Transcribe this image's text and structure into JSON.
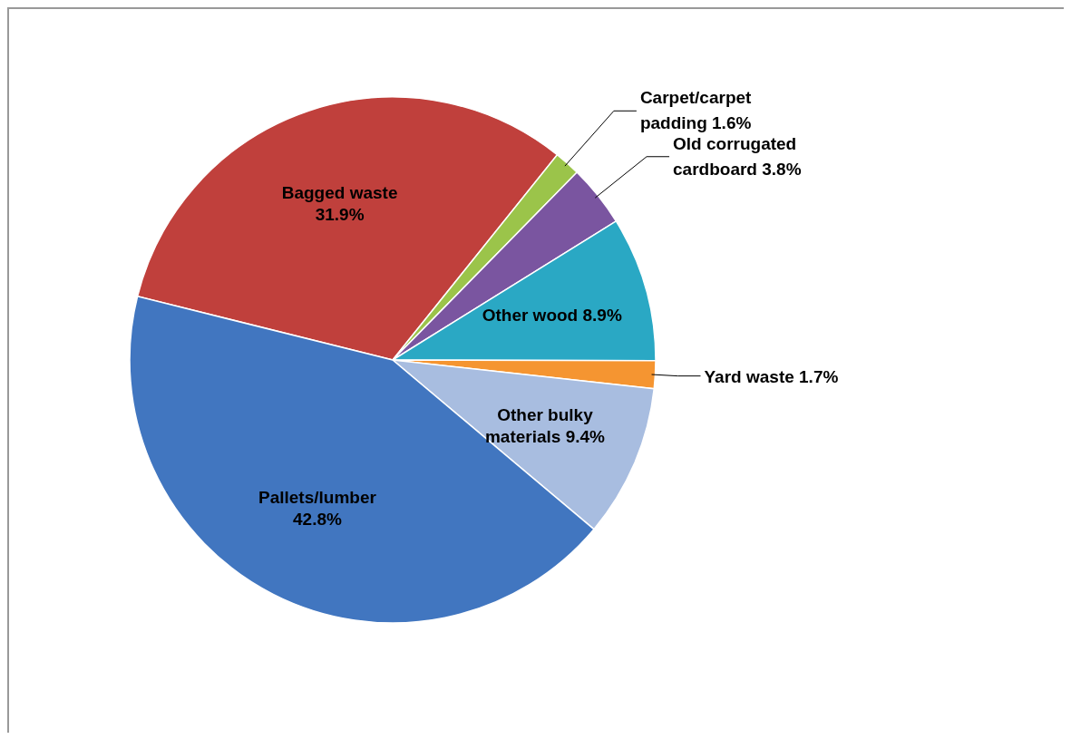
{
  "chart_data": {
    "type": "pie",
    "categories": [
      "Bagged waste",
      "Carpet/carpet padding",
      "Old corrugated cardboard",
      "Other wood",
      "Yard waste",
      "Other bulky materials",
      "Pallets/lumber"
    ],
    "values": [
      31.9,
      1.6,
      3.8,
      8.9,
      1.7,
      9.4,
      42.8
    ],
    "colors": [
      "#c0403c",
      "#9bc44a",
      "#7a55a0",
      "#2aa8c4",
      "#f59531",
      "#a8bde0",
      "#4176c0"
    ],
    "value_labels": [
      "31.9%",
      "1.6%",
      "3.8%",
      "8.9%",
      "1.7%",
      "9.4%",
      "42.8%"
    ],
    "legend": false
  }
}
